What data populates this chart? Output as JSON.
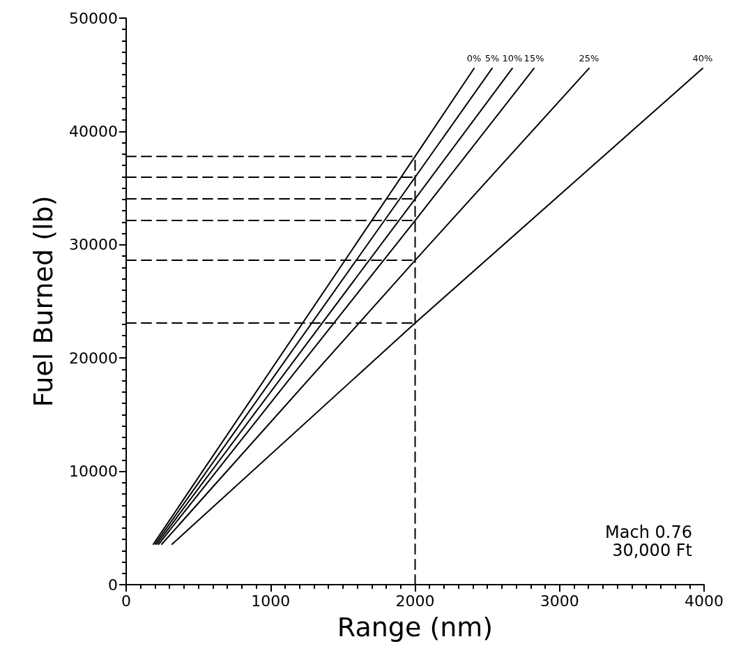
{
  "chart_data": {
    "type": "line",
    "xlabel": "Range (nm)",
    "ylabel": "Fuel Burned (lb)",
    "xlim": [
      0,
      4000
    ],
    "xticks": [
      0,
      1000,
      2000,
      3000,
      4000
    ],
    "ylim": [
      0,
      50000
    ],
    "yticks": [
      0,
      10000,
      20000,
      30000,
      40000,
      50000
    ],
    "grid": false,
    "legend": false,
    "marker": "none",
    "series": [
      {
        "name": "0%",
        "color": "#000000",
        "x": [
          188,
          2000,
          2408
        ],
        "values": [
          3570,
          37800,
          45570
        ]
      },
      {
        "name": "5%",
        "color": "#000000",
        "x": [
          200,
          2000,
          2533
        ],
        "values": [
          3570,
          35960,
          45570
        ]
      },
      {
        "name": "10%",
        "color": "#000000",
        "x": [
          212,
          2000,
          2673
        ],
        "values": [
          3570,
          34050,
          45570
        ]
      },
      {
        "name": "15%",
        "color": "#000000",
        "x": [
          225,
          2000,
          2823
        ],
        "values": [
          3570,
          32140,
          45570
        ]
      },
      {
        "name": "25%",
        "color": "#000000",
        "x": [
          246,
          2000,
          3204
        ],
        "values": [
          3570,
          28630,
          45570
        ]
      },
      {
        "name": "40%",
        "color": "#000000",
        "x": [
          318,
          2000,
          3990
        ],
        "values": [
          3570,
          23090,
          45570
        ]
      },
      {
        "color": "#000000",
        "line_style": "dashed",
        "x": [
          2000,
          2000
        ],
        "values": [
          0,
          37800
        ]
      },
      {
        "color": "#000000",
        "line_style": "dashed",
        "x": [
          0,
          2000
        ],
        "values": [
          37800,
          37800
        ]
      },
      {
        "color": "#000000",
        "line_style": "dashed",
        "x": [
          0,
          2000
        ],
        "values": [
          35960,
          35960
        ]
      },
      {
        "color": "#000000",
        "line_style": "dashed",
        "x": [
          0,
          2000
        ],
        "values": [
          34050,
          34050
        ]
      },
      {
        "color": "#000000",
        "line_style": "dashed",
        "x": [
          0,
          2000
        ],
        "values": [
          32140,
          32140
        ]
      },
      {
        "color": "#000000",
        "line_style": "dashed",
        "x": [
          0,
          2000
        ],
        "values": [
          28630,
          28630
        ]
      },
      {
        "color": "#000000",
        "line_style": "dashed",
        "x": [
          0,
          2000
        ],
        "values": [
          23090,
          23090
        ]
      }
    ],
    "annotations": [
      "Mach 0.76",
      "30,000 Ft"
    ]
  }
}
